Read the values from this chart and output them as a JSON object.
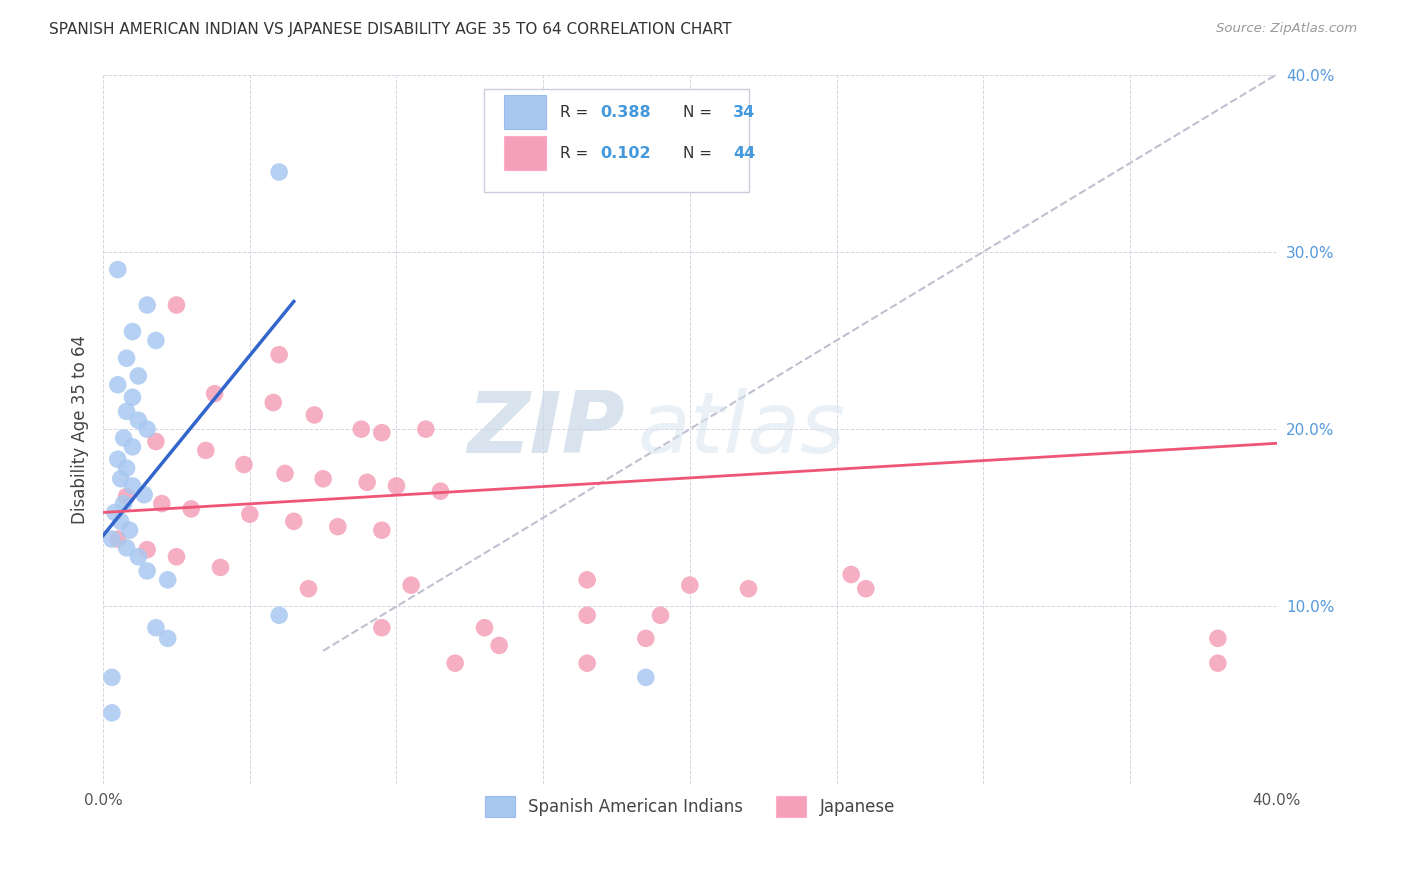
{
  "title": "SPANISH AMERICAN INDIAN VS JAPANESE DISABILITY AGE 35 TO 64 CORRELATION CHART",
  "source": "Source: ZipAtlas.com",
  "ylabel": "Disability Age 35 to 64",
  "xlim": [
    0.0,
    0.4
  ],
  "ylim": [
    0.0,
    0.4
  ],
  "watermark": "ZIPatlas",
  "color_blue": "#A8C8F0",
  "color_pink": "#F4A0B8",
  "color_blue_line": "#3366CC",
  "color_pink_line": "#EE5577",
  "color_gray_diag": "#C0C0D0",
  "blue_points": [
    [
      0.005,
      0.29
    ],
    [
      0.015,
      0.27
    ],
    [
      0.01,
      0.255
    ],
    [
      0.018,
      0.25
    ],
    [
      0.008,
      0.24
    ],
    [
      0.012,
      0.23
    ],
    [
      0.005,
      0.225
    ],
    [
      0.01,
      0.218
    ],
    [
      0.008,
      0.21
    ],
    [
      0.012,
      0.205
    ],
    [
      0.015,
      0.2
    ],
    [
      0.007,
      0.195
    ],
    [
      0.01,
      0.19
    ],
    [
      0.005,
      0.183
    ],
    [
      0.008,
      0.178
    ],
    [
      0.006,
      0.172
    ],
    [
      0.01,
      0.168
    ],
    [
      0.014,
      0.163
    ],
    [
      0.007,
      0.158
    ],
    [
      0.004,
      0.153
    ],
    [
      0.006,
      0.148
    ],
    [
      0.009,
      0.143
    ],
    [
      0.003,
      0.138
    ],
    [
      0.008,
      0.133
    ],
    [
      0.012,
      0.128
    ],
    [
      0.015,
      0.12
    ],
    [
      0.022,
      0.115
    ],
    [
      0.06,
      0.345
    ],
    [
      0.003,
      0.06
    ],
    [
      0.06,
      0.095
    ],
    [
      0.018,
      0.088
    ],
    [
      0.022,
      0.082
    ],
    [
      0.003,
      0.04
    ],
    [
      0.185,
      0.06
    ]
  ],
  "pink_points": [
    [
      0.025,
      0.27
    ],
    [
      0.06,
      0.242
    ],
    [
      0.038,
      0.22
    ],
    [
      0.058,
      0.215
    ],
    [
      0.072,
      0.208
    ],
    [
      0.088,
      0.2
    ],
    [
      0.095,
      0.198
    ],
    [
      0.11,
      0.2
    ],
    [
      0.018,
      0.193
    ],
    [
      0.035,
      0.188
    ],
    [
      0.048,
      0.18
    ],
    [
      0.062,
      0.175
    ],
    [
      0.075,
      0.172
    ],
    [
      0.09,
      0.17
    ],
    [
      0.1,
      0.168
    ],
    [
      0.115,
      0.165
    ],
    [
      0.008,
      0.162
    ],
    [
      0.02,
      0.158
    ],
    [
      0.03,
      0.155
    ],
    [
      0.05,
      0.152
    ],
    [
      0.065,
      0.148
    ],
    [
      0.08,
      0.145
    ],
    [
      0.095,
      0.143
    ],
    [
      0.005,
      0.138
    ],
    [
      0.015,
      0.132
    ],
    [
      0.025,
      0.128
    ],
    [
      0.04,
      0.122
    ],
    [
      0.07,
      0.11
    ],
    [
      0.105,
      0.112
    ],
    [
      0.165,
      0.115
    ],
    [
      0.2,
      0.112
    ],
    [
      0.255,
      0.118
    ],
    [
      0.19,
      0.095
    ],
    [
      0.22,
      0.11
    ],
    [
      0.165,
      0.095
    ],
    [
      0.13,
      0.088
    ],
    [
      0.135,
      0.078
    ],
    [
      0.12,
      0.068
    ],
    [
      0.26,
      0.11
    ],
    [
      0.095,
      0.088
    ],
    [
      0.185,
      0.082
    ],
    [
      0.38,
      0.082
    ],
    [
      0.165,
      0.068
    ],
    [
      0.38,
      0.068
    ]
  ],
  "blue_line_x": [
    0.0,
    0.065
  ],
  "blue_line_y": [
    0.14,
    0.272
  ],
  "pink_line_x": [
    0.0,
    0.4
  ],
  "pink_line_y": [
    0.153,
    0.192
  ],
  "diag_line_x": [
    0.075,
    0.4
  ],
  "diag_line_y": [
    0.075,
    0.4
  ]
}
